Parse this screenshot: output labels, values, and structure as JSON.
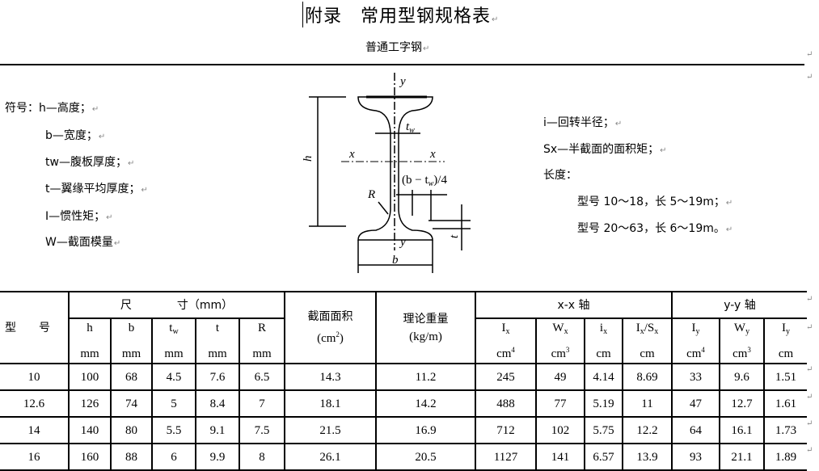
{
  "title": "附录　常用型钢规格表",
  "subtitle": "普通工字钢",
  "symbols_left": [
    "符号：h—高度；",
    "b—宽度；",
    "tw—腹板厚度；",
    "t—翼缘平均厚度；",
    "I—惯性矩；",
    "W—截面模量"
  ],
  "symbols_right": [
    "i—回转半径；",
    "Sx—半截面的面积矩；",
    "长度：",
    "型号 10～18，长 5～19m；",
    "型号 20～63，长 6～19m。"
  ],
  "diagram": {
    "label_y_top": "y",
    "label_y_bottom": "y",
    "label_x_left": "x",
    "label_x_right": "x",
    "label_h": "h",
    "label_b": "b",
    "label_tw": "t",
    "label_tw_sub": "w",
    "label_R": "R",
    "label_t": "t",
    "label_quarter": "(b − t",
    "label_quarter_sub": "w",
    "label_quarter_end": ")/4"
  },
  "table": {
    "header": {
      "model": "型　　号",
      "dims": "尺　　　　寸（mm）",
      "area": "截面面积",
      "area_unit": "(cm",
      "area_sup": "2",
      "area_end": ")",
      "weight": "理论重量",
      "weight_unit": "(kg/m)",
      "xx_axis": "x-x 轴",
      "yy_axis": "y-y 轴"
    },
    "subheaders": [
      {
        "sym": "h",
        "sub": "",
        "unit": "mm",
        "sup": ""
      },
      {
        "sym": "b",
        "sub": "",
        "unit": "mm",
        "sup": ""
      },
      {
        "sym": "t",
        "sub": "w",
        "unit": "mm",
        "sup": ""
      },
      {
        "sym": "t",
        "sub": "",
        "unit": "mm",
        "sup": ""
      },
      {
        "sym": "R",
        "sub": "",
        "unit": "mm",
        "sup": ""
      },
      {
        "sym": "I",
        "sub": "x",
        "unit": "cm",
        "sup": "4"
      },
      {
        "sym": "W",
        "sub": "x",
        "unit": "cm",
        "sup": "3"
      },
      {
        "sym": "i",
        "sub": "x",
        "unit": "cm",
        "sup": ""
      },
      {
        "sym": "I",
        "sub": "x",
        "sym2": "/S",
        "sub2": "x",
        "unit": "cm",
        "sup": ""
      },
      {
        "sym": "I",
        "sub": "y",
        "unit": "cm",
        "sup": "4"
      },
      {
        "sym": "W",
        "sub": "y",
        "unit": "cm",
        "sup": "3"
      },
      {
        "sym": "I",
        "sub": "y",
        "unit": "cm",
        "sup": ""
      }
    ],
    "rows": [
      [
        "10",
        "100",
        "68",
        "4.5",
        "7.6",
        "6.5",
        "14.3",
        "11.2",
        "245",
        "49",
        "4.14",
        "8.69",
        "33",
        "9.6",
        "1.51"
      ],
      [
        "12.6",
        "126",
        "74",
        "5",
        "8.4",
        "7",
        "18.1",
        "14.2",
        "488",
        "77",
        "5.19",
        "11",
        "47",
        "12.7",
        "1.61"
      ],
      [
        "14",
        "140",
        "80",
        "5.5",
        "9.1",
        "7.5",
        "21.5",
        "16.9",
        "712",
        "102",
        "5.75",
        "12.2",
        "64",
        "16.1",
        "1.73"
      ],
      [
        "16",
        "160",
        "88",
        "6",
        "9.9",
        "8",
        "26.1",
        "20.5",
        "1127",
        "141",
        "6.57",
        "13.9",
        "93",
        "21.1",
        "1.89"
      ]
    ]
  }
}
